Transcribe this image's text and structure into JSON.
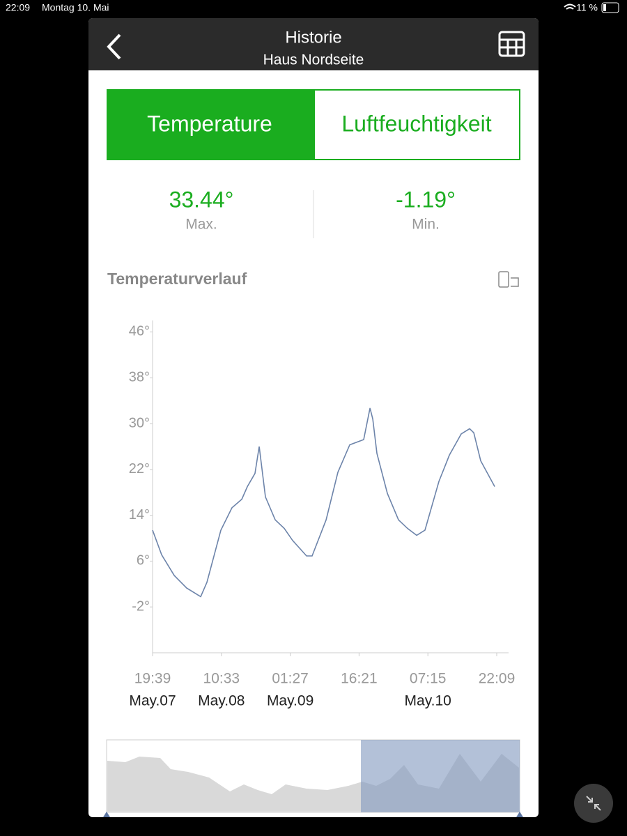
{
  "status_bar": {
    "time": "22:09",
    "date": "Montag 10. Mai",
    "battery": "11 %"
  },
  "header": {
    "title": "Historie",
    "subtitle": "Haus Nordseite"
  },
  "tabs": [
    "Temperature",
    "Luftfeuchtigkeit"
  ],
  "stats": [
    {
      "value": "33.44°",
      "label": "Max."
    },
    {
      "value": "-1.19°",
      "label": "Min."
    }
  ],
  "section_title": "Temperaturverlauf",
  "chart_data": {
    "type": "line",
    "x": [
      "May.07 19:39",
      "May.07 21:37",
      "May.08 00:20",
      "May.08 03:02",
      "May.08 06:04",
      "May.08 07:25",
      "May.08 10:26",
      "May.08 12:50",
      "May.08 14:58",
      "May.08 16:10",
      "May.08 17:49",
      "May.08 18:44",
      "May.08 20:05",
      "May.08 22:12",
      "May.09 00:10",
      "May.09 01:58",
      "May.09 04:59",
      "May.09 06:11",
      "May.09 09:13",
      "May.09 11:46",
      "May.09 14:20",
      "May.09 17:21",
      "May.09 18:43",
      "May.09 19:19",
      "May.09 20:13",
      "May.09 22:29",
      "May.10 00:53",
      "May.10 02:51",
      "May.10 04:49",
      "May.10 06:37",
      "May.10 09:38",
      "May.10 11:54",
      "May.10 14:28",
      "May.10 16:17",
      "May.10 17:11",
      "May.10 18:41",
      "May.10 21:43"
    ],
    "series": [
      {
        "color": "#6d84aa",
        "values": [
          11.4,
          7.1,
          3.5,
          1.3,
          -0.2,
          2.3,
          11.4,
          15.3,
          16.8,
          19.0,
          21.3,
          26.0,
          17.2,
          13.2,
          11.7,
          9.6,
          6.9,
          6.9,
          13.2,
          21.5,
          26.3,
          27.2,
          32.7,
          30.8,
          24.8,
          17.8,
          13.2,
          11.7,
          10.5,
          11.4,
          19.9,
          24.5,
          28.2,
          29.1,
          28.4,
          23.5,
          19.0
        ]
      }
    ],
    "xlim": [
      "May.07 19:39",
      "May.10 22:09"
    ],
    "xticks": [
      {
        "value": "May.07 19:39",
        "label": "19:39",
        "date": "May.07"
      },
      {
        "value": "May.08 10:33",
        "label": "10:33",
        "date": "May.08"
      },
      {
        "value": "May.09 01:27",
        "label": "01:27",
        "date": "May.09"
      },
      {
        "value": "May.09 16:21",
        "label": "16:21"
      },
      {
        "value": "May.10 07:15",
        "label": "07:15",
        "date": "May.10"
      },
      {
        "value": "May.10 22:09",
        "label": "22:09"
      }
    ],
    "ylim": [
      -10,
      48
    ],
    "yticks": [
      {
        "value": -2,
        "label": "-2°"
      },
      {
        "value": 6,
        "label": "6°"
      },
      {
        "value": 14,
        "label": "14°"
      },
      {
        "value": 22,
        "label": "22°"
      },
      {
        "value": 30,
        "label": "30°"
      },
      {
        "value": 38,
        "label": "38°"
      },
      {
        "value": 46,
        "label": "46°"
      }
    ]
  }
}
